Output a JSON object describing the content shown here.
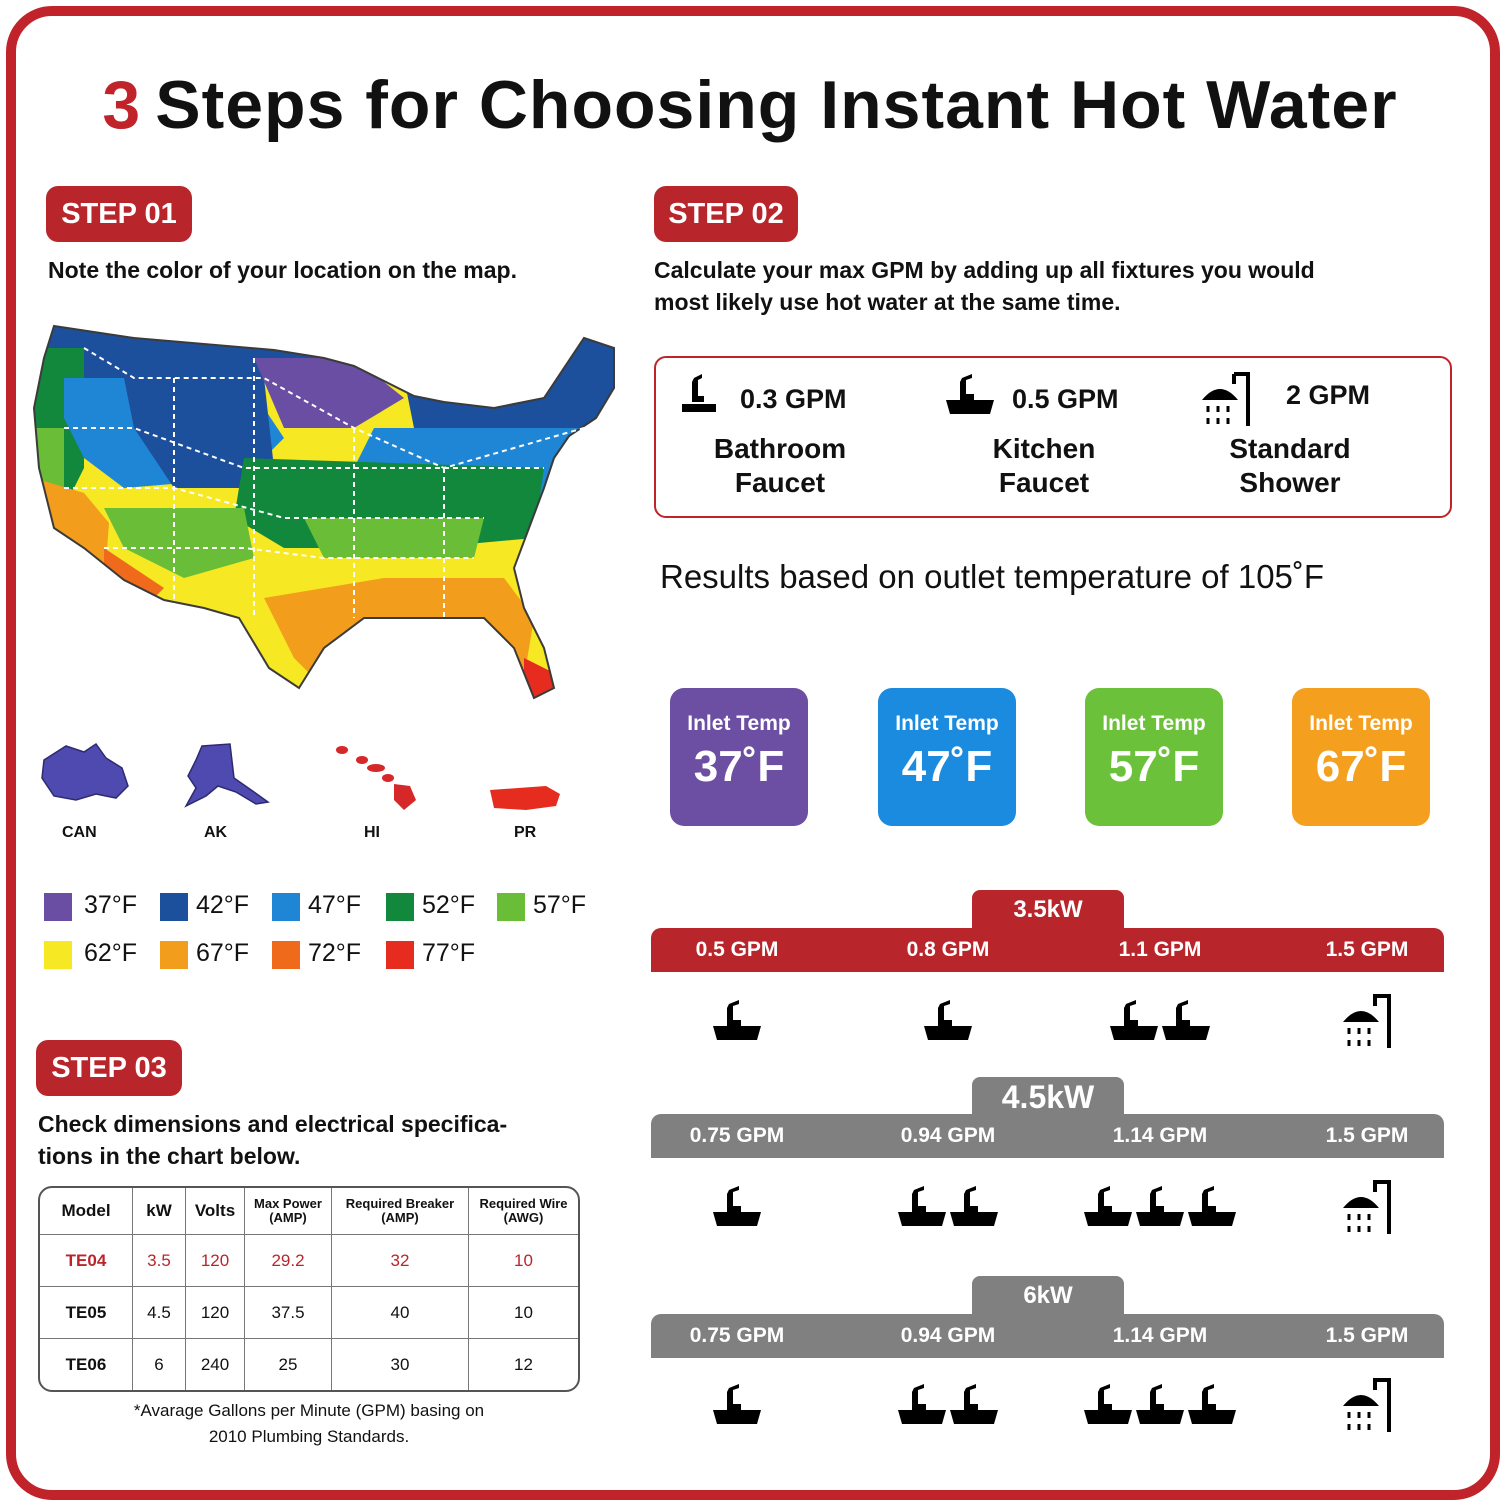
{
  "title": {
    "number": "3",
    "text": "Steps for Choosing Instant Hot Water"
  },
  "step1": {
    "badge": "STEP 01",
    "instruction": "Note the color of your location on the map.",
    "insets": [
      "CAN",
      "AK",
      "HI",
      "PR"
    ],
    "legend": [
      {
        "label": "37°F",
        "color": "#6a4ea3"
      },
      {
        "label": "42°F",
        "color": "#1c4f9c"
      },
      {
        "label": "47°F",
        "color": "#1f86d6"
      },
      {
        "label": "52°F",
        "color": "#11883c"
      },
      {
        "label": "57°F",
        "color": "#69bd37"
      },
      {
        "label": "62°F",
        "color": "#f6e822"
      },
      {
        "label": "67°F",
        "color": "#f29d1c"
      },
      {
        "label": "72°F",
        "color": "#ef6a1b"
      },
      {
        "label": "77°F",
        "color": "#e52c1f"
      }
    ]
  },
  "step2": {
    "badge": "STEP 02",
    "instruction_line1": "Calculate your max GPM by adding up all fixtures you would",
    "instruction_line2": "most likely use hot water at the same time.",
    "fixtures": [
      {
        "gpm": "0.3 GPM",
        "name1": "Bathroom",
        "name2": "Faucet",
        "icon": "bathroom-faucet-icon"
      },
      {
        "gpm": "0.5 GPM",
        "name1": "Kitchen",
        "name2": "Faucet",
        "icon": "kitchen-faucet-icon"
      },
      {
        "gpm": "2 GPM",
        "name1": "Standard",
        "name2": "Shower",
        "icon": "shower-icon"
      }
    ],
    "results_note": "Results based on outlet temperature of 105˚F",
    "inlets": [
      {
        "label": "Inlet Temp",
        "temp": "37˚F",
        "color": "#6c4fa3"
      },
      {
        "label": "Inlet Temp",
        "temp": "47˚F",
        "color": "#1b8be0"
      },
      {
        "label": "Inlet Temp",
        "temp": "57˚F",
        "color": "#6cc13a"
      },
      {
        "label": "Inlet Temp",
        "temp": "67˚F",
        "color": "#f4a01e"
      }
    ],
    "ratings": [
      {
        "kw": "3.5kW",
        "color": "#b8262c",
        "gpm": [
          "0.5 GPM",
          "0.8 GPM",
          "1.1 GPM",
          "1.5 GPM"
        ]
      },
      {
        "kw": "4.5kW",
        "color": "#808080",
        "gpm": [
          "0.75 GPM",
          "0.94 GPM",
          "1.14 GPM",
          "1.5 GPM"
        ]
      },
      {
        "kw": "6kW",
        "color": "#808080",
        "gpm": [
          "0.75 GPM",
          "0.94 GPM",
          "1.14 GPM",
          "1.5 GPM"
        ]
      }
    ]
  },
  "step3": {
    "badge": "STEP 03",
    "instruction_line1": "Check dimensions and electrical specifica-",
    "instruction_line2": "tions in the chart below.",
    "table": {
      "headers": [
        "Model",
        "kW",
        "Volts",
        "Max Power",
        "(AMP)",
        "Required Breaker",
        "(AMP)",
        "Required Wire",
        "(AWG)"
      ],
      "rows": [
        [
          "TE04",
          "3.5",
          "120",
          "29.2",
          "32",
          "10"
        ],
        [
          "TE05",
          "4.5",
          "120",
          "37.5",
          "40",
          "10"
        ],
        [
          "TE06",
          "6",
          "240",
          "25",
          "30",
          "12"
        ]
      ]
    },
    "note_line1": "*Avarage Gallons per Minute (GPM) basing on",
    "note_line2": "2010 Plumbing Standards."
  }
}
